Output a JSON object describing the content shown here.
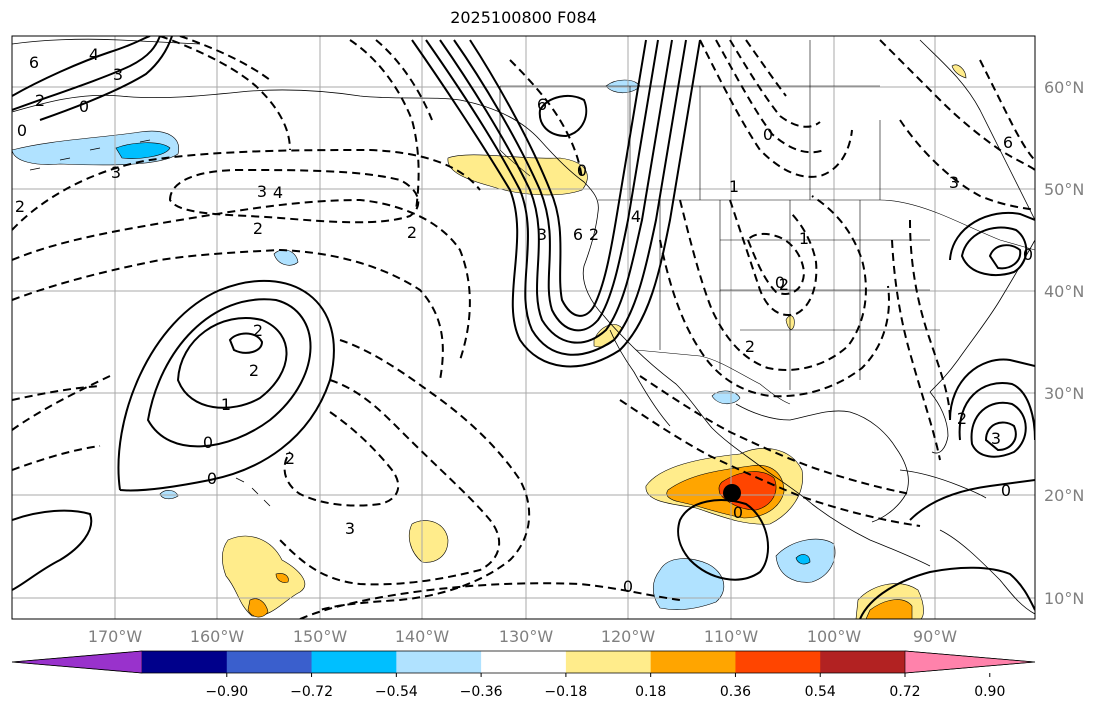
{
  "title": "2025100800 F084",
  "map": {
    "lon_labels": [
      "170°W",
      "160°W",
      "150°W",
      "140°W",
      "130°W",
      "120°W",
      "110°W",
      "100°W",
      "90°W"
    ],
    "lat_labels": [
      "60°N",
      "50°N",
      "40°N",
      "30°N",
      "20°N",
      "10°N"
    ],
    "contour_labels": [
      "6",
      "4",
      "3",
      "2",
      "0",
      "3",
      "2",
      "0",
      "6",
      "2",
      "0",
      "4",
      "3",
      "2",
      "2",
      "3",
      "4",
      "6",
      "2",
      "0",
      "2",
      "1",
      "0",
      "2",
      "3",
      "0",
      "1",
      "2",
      "2",
      "1",
      "0",
      "0",
      "6",
      "3",
      "0",
      "3",
      "2",
      "0",
      "0"
    ],
    "marker": "storm-center-dot"
  },
  "colorbar": {
    "colors": [
      "#9932cc",
      "#00008b",
      "#3a5fcd",
      "#00bfff",
      "#b0e2ff",
      "#ffffff",
      "#ffec8b",
      "#ffa500",
      "#ff4500",
      "#b22222",
      "#ff82ab"
    ],
    "tick_labels": [
      "−0.90",
      "−0.72",
      "−0.54",
      "−0.36",
      "−0.18",
      "0.18",
      "0.36",
      "0.54",
      "0.72",
      "0.90"
    ]
  }
}
